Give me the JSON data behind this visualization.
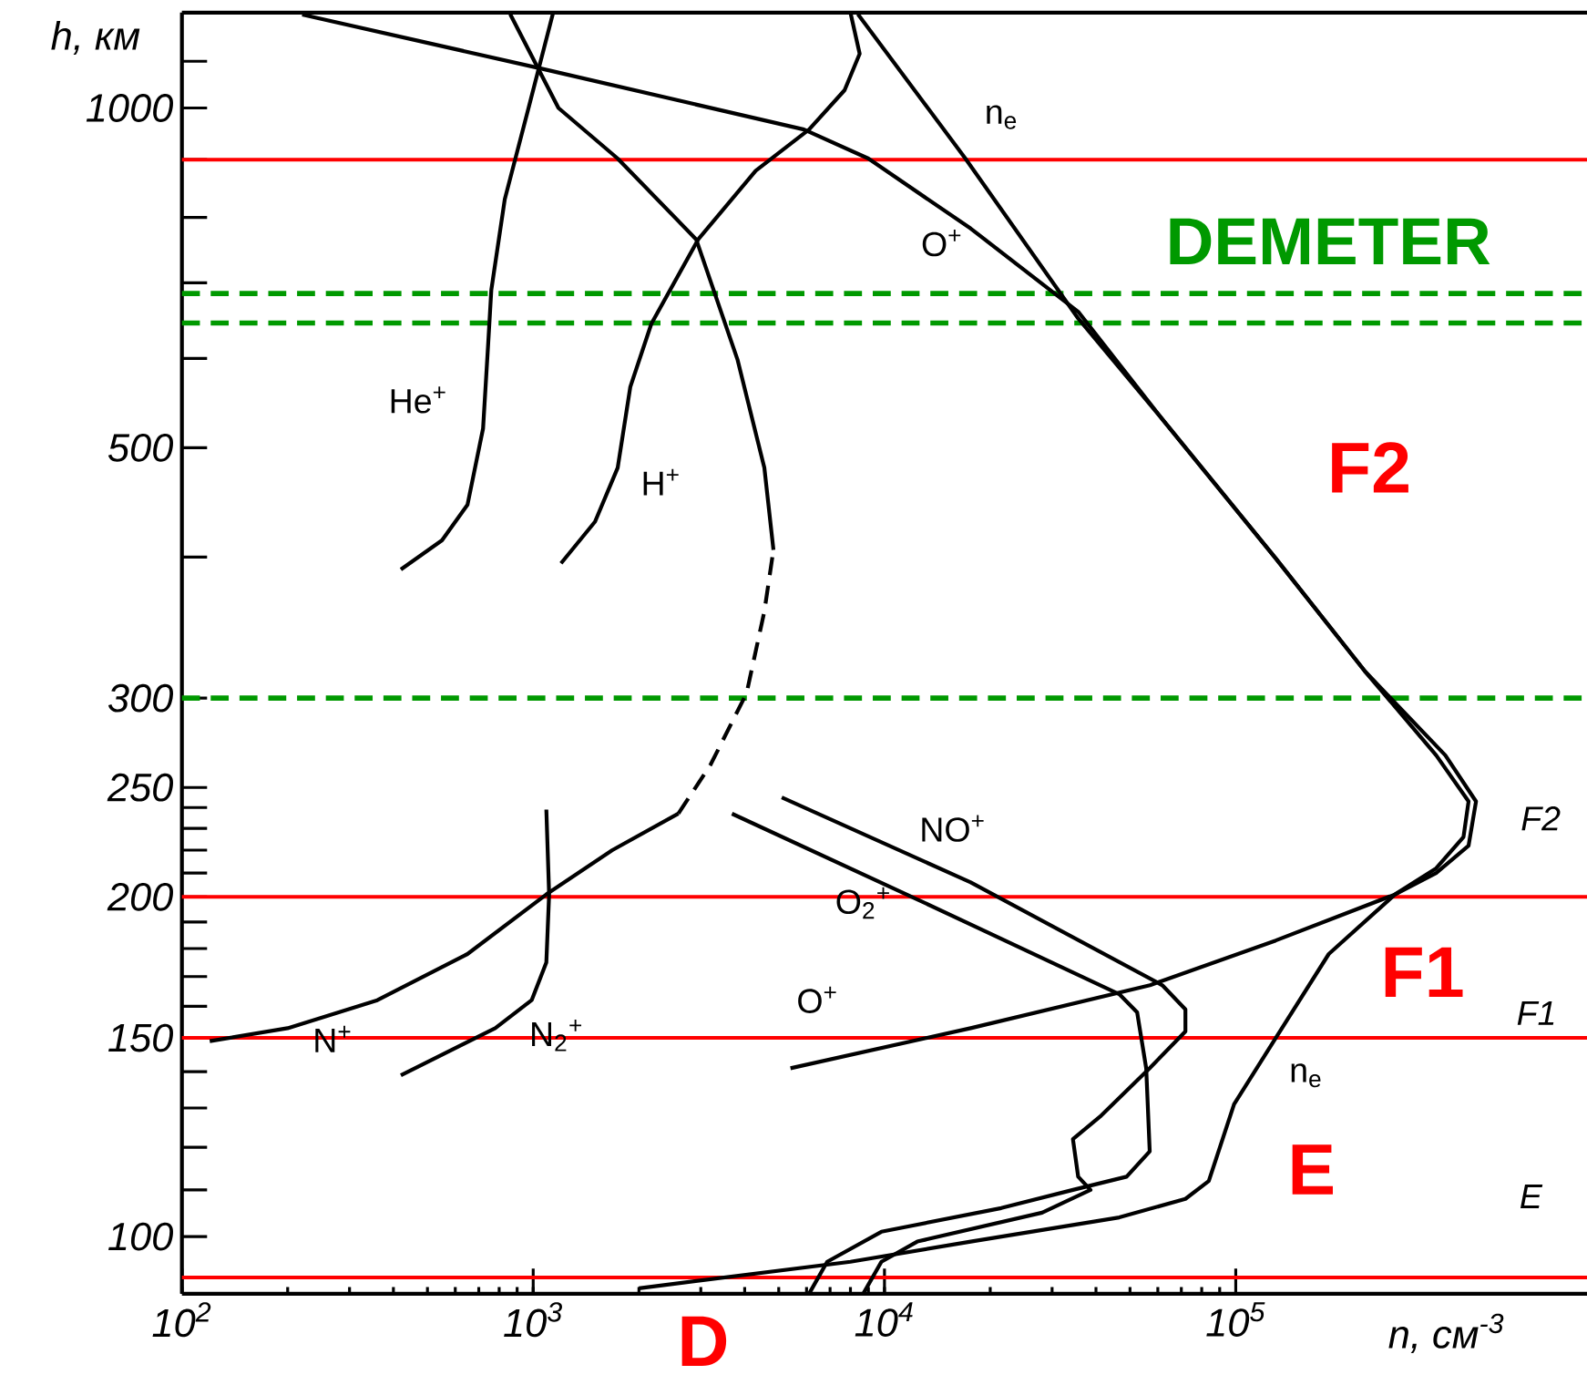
{
  "chart_data": {
    "type": "line",
    "xlabel": "n, см$^{-3}$",
    "ylabel": "h, км",
    "log": "xy",
    "xlim": [
      100,
      1000000
    ],
    "ylim": [
      89,
      1215
    ],
    "xticks": [
      {
        "value": 100,
        "label": "10$^{2}$"
      },
      {
        "value": 1000,
        "label": "10$^{3}$"
      },
      {
        "value": 10000,
        "label": "10$^{4}$"
      },
      {
        "value": 100000,
        "label": "10$^{5}$"
      }
    ],
    "yticks": [
      100,
      {
        "value": 110,
        "label": null
      },
      {
        "value": 120,
        "label": null
      },
      {
        "value": 130,
        "label": null
      },
      {
        "value": 140,
        "label": null
      },
      150,
      {
        "value": 160,
        "label": null
      },
      {
        "value": 170,
        "label": null
      },
      {
        "value": 180,
        "label": null
      },
      {
        "value": 190,
        "label": null
      },
      200,
      {
        "value": 210,
        "label": null
      },
      {
        "value": 220,
        "label": null
      },
      {
        "value": 230,
        "label": null
      },
      {
        "value": 240,
        "label": null
      },
      250,
      300,
      {
        "value": 400,
        "label": null
      },
      500,
      {
        "value": 600,
        "label": null
      },
      {
        "value": 700,
        "label": null
      },
      {
        "value": 800,
        "label": null
      },
      {
        "value": 900,
        "label": null
      },
      1000,
      {
        "value": 1100,
        "label": null
      }
    ],
    "series": [
      {
        "name": "He$^{+}$",
        "color": "#000000",
        "x": [
          1140,
          970,
          830,
          760,
          745,
          720,
          650,
          550,
          420
        ],
        "values": [
          1215,
          1000,
          830,
          690,
          620,
          520,
          445,
          414,
          390
        ]
      },
      {
        "name": "H$^{+}$",
        "color": "#000000",
        "x": [
          1200,
          1500,
          1740,
          1890,
          2170,
          2950,
          4300,
          6100,
          7700,
          8500,
          8000
        ],
        "values": [
          395,
          430,
          480,
          566,
          644,
          765,
          880,
          957,
          1037,
          1117,
          1215
        ]
      },
      {
        "name": "O$^{+}$",
        "color": "#000000",
        "x": [
          220,
          1050,
          5900,
          9000,
          17600,
          35600,
          61800,
          130000,
          233000,
          372000,
          460000,
          445000,
          372000,
          284000,
          130000,
          57000,
          17600,
          5400
        ],
        "values": [
          1210,
          1084,
          957,
          902,
          782,
          660,
          530,
          399,
          317,
          267,
          243,
          226,
          212,
          201,
          183,
          167,
          153,
          141
        ]
      },
      {
        "name": "n$_{e}$",
        "color": "#000000",
        "x": [
          8400,
          17000,
          35600,
          61800,
          130000,
          233000,
          395000,
          483000,
          460000,
          372000,
          284000,
          184000,
          130000,
          98900,
          83800,
          71900,
          46600,
          17600,
          8000,
          2000
        ],
        "values": [
          1211,
          902,
          651,
          530,
          399,
          317,
          267,
          243,
          222,
          210,
          201,
          178,
          150,
          131,
          112,
          108,
          104,
          99,
          95,
          90
        ]
      },
      {
        "name": "N$^{+}$",
        "color": "#000000",
        "x": [
          120,
          200,
          360,
          650,
          1090,
          1680,
          2590
        ],
        "values": [
          149,
          153,
          162,
          178,
          201,
          220,
          237
        ]
      },
      {
        "color": "#000000",
        "line_style": "dashed",
        "x": [
          2590,
          3200,
          4050,
          4550,
          4830
        ],
        "values": [
          237,
          262,
          303,
          358,
          406
        ]
      },
      {
        "color": "#000000",
        "x": [
          4830,
          4550,
          3820,
          2910,
          1740,
          1180,
          860
        ],
        "values": [
          406,
          480,
          598,
          765,
          902,
          1000,
          1211
        ]
      },
      {
        "name": "N$_{2}$$^{+}$",
        "color": "#000000",
        "x": [
          1090,
          1110,
          1090,
          990,
          780,
          420
        ],
        "values": [
          239,
          201,
          175,
          162,
          153,
          139
        ]
      },
      {
        "name": "NO$^{+}$",
        "color": "#000000",
        "x": [
          5100,
          17600,
          61800,
          71900,
          71900,
          56900,
          41400,
          34400,
          35600,
          38600,
          28100,
          12400,
          9800,
          8700
        ],
        "values": [
          245,
          206,
          167,
          159,
          152,
          141,
          128,
          122,
          113,
          110,
          105,
          99,
          95,
          89
        ]
      },
      {
        "name": "O$_{2}$$^{+}$",
        "color": "#000000",
        "x": [
          3680,
          12400,
          46600,
          52400,
          55600,
          56900,
          48900,
          34400,
          21500,
          9800,
          6870,
          6100
        ],
        "values": [
          237,
          199,
          164,
          158,
          141,
          119,
          113,
          110,
          106,
          101,
          95,
          89
        ]
      }
    ],
    "ref_lines": [
      {
        "axis": "y",
        "value": 685,
        "label": "DEMETER",
        "color": "#009900",
        "line_style": "dashed"
      },
      {
        "axis": "y",
        "value": 645,
        "color": "#009900",
        "line_style": "dashed"
      },
      {
        "axis": "y",
        "value": 300,
        "color": "#009900",
        "line_style": "dashed"
      },
      {
        "axis": "y",
        "value": 900,
        "color": "#ff0000"
      },
      {
        "axis": "y",
        "value": 200,
        "color": "#ff0000"
      },
      {
        "axis": "y",
        "value": 150,
        "color": "#ff0000"
      },
      {
        "axis": "y",
        "value": 92,
        "color": "#ff0000"
      }
    ],
    "annotations": [
      {
        "text": "O$^{+}$",
        "x": 5400,
        "y": 141
      },
      {
        "text": "n$_{e}$",
        "x": 98900,
        "y": 131
      },
      "F2",
      "F1",
      "E",
      "F2",
      "F1",
      "E",
      "D"
    ]
  }
}
